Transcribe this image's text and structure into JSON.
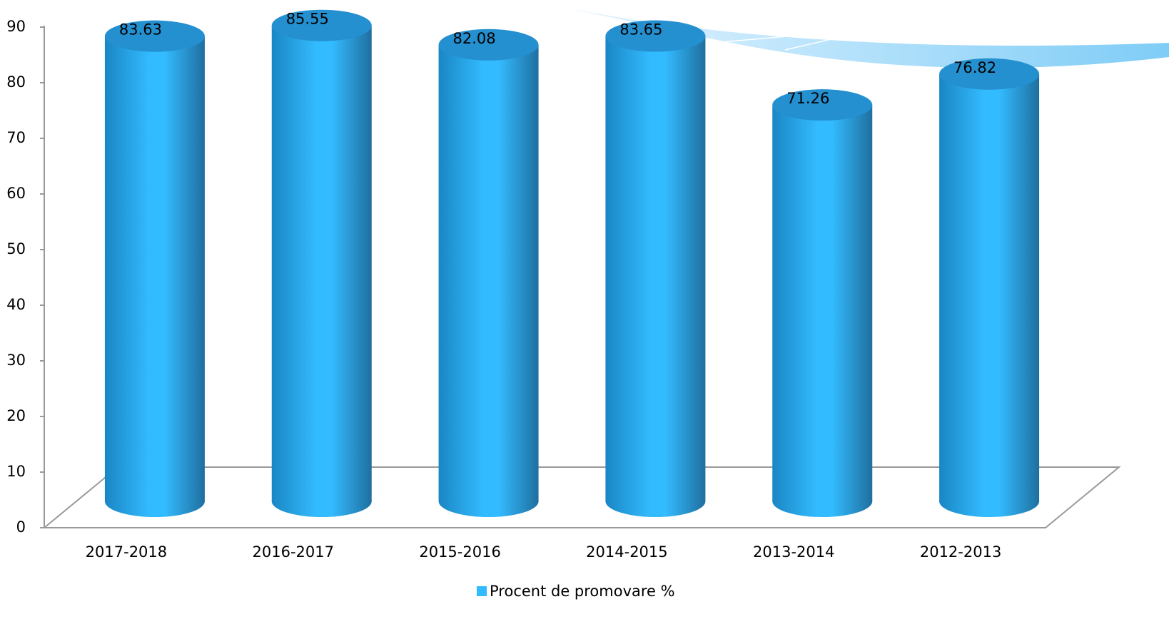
{
  "chart_data": {
    "type": "bar",
    "categories": [
      "2017-2018",
      "2016-2017",
      "2015-2016",
      "2014-2015",
      "2013-2014",
      "2012-2013"
    ],
    "series": [
      {
        "name": "Procent de promovare %",
        "color": "#33bbff",
        "values": [
          83.63,
          85.55,
          82.08,
          83.65,
          71.26,
          76.82
        ]
      }
    ],
    "ylim": [
      0,
      90
    ],
    "yticks": [
      0,
      10,
      20,
      30,
      40,
      50,
      60,
      70,
      80,
      90
    ],
    "legend": "bottom"
  }
}
